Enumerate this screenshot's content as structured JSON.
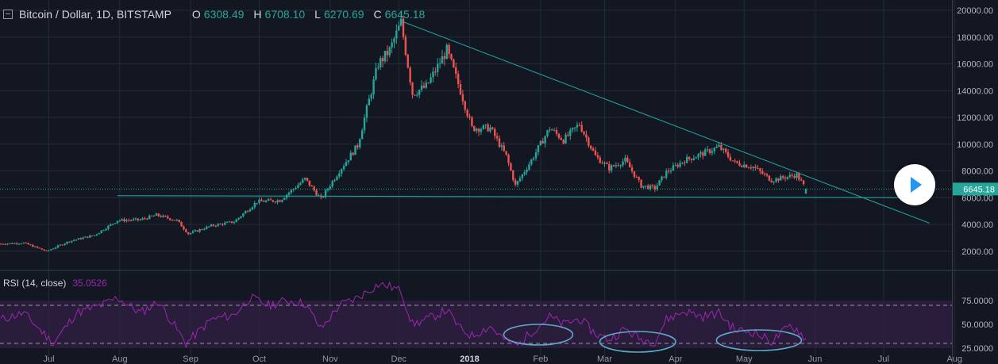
{
  "header": {
    "symbol": "Bitcoin / Dollar, 1D, BITSTAMP",
    "o_label": "O",
    "o_value": "6308.49",
    "h_label": "H",
    "h_value": "6708.10",
    "l_label": "L",
    "l_value": "6270.69",
    "c_label": "C",
    "c_value": "6645.18"
  },
  "rsi_header": {
    "label": "RSI (14, close)",
    "value": "35.0526"
  },
  "colors": {
    "background": "#131722",
    "up": "#26a69a",
    "down": "#ef5350",
    "rsi": "#9c27b0",
    "trendline": "#1fb0a8",
    "annotation": "#5fa8c8"
  },
  "chart_data": [
    {
      "type": "candlestick",
      "title": "Bitcoin / Dollar, 1D, BITSTAMP",
      "ylim": [
        800,
        20000
      ],
      "yticks": [
        "2000.00",
        "4000.00",
        "6000.00",
        "8000.00",
        "10000.00",
        "12000.00",
        "14000.00",
        "16000.00",
        "18000.00",
        "20000.00"
      ],
      "ytick_values": [
        2000,
        4000,
        6000,
        8000,
        10000,
        12000,
        14000,
        16000,
        18000,
        20000
      ],
      "xlabels": [
        "Jul",
        "Aug",
        "Sep",
        "Oct",
        "Nov",
        "Dec",
        "2018",
        "Feb",
        "Mar",
        "Apr",
        "May",
        "Jun",
        "Jul",
        "Aug"
      ],
      "last_price_label": "6645.18",
      "last_price": 6645.18,
      "grid": true,
      "price_series": [
        {
          "date": "2017-06-25",
          "close": 2550
        },
        {
          "date": "2017-07-05",
          "close": 2620
        },
        {
          "date": "2017-07-15",
          "close": 2000
        },
        {
          "date": "2017-07-25",
          "close": 2750
        },
        {
          "date": "2017-08-05",
          "close": 3200
        },
        {
          "date": "2017-08-15",
          "close": 4300
        },
        {
          "date": "2017-08-25",
          "close": 4350
        },
        {
          "date": "2017-09-01",
          "close": 4700
        },
        {
          "date": "2017-09-10",
          "close": 4300
        },
        {
          "date": "2017-09-15",
          "close": 3300
        },
        {
          "date": "2017-09-25",
          "close": 3900
        },
        {
          "date": "2017-10-05",
          "close": 4200
        },
        {
          "date": "2017-10-15",
          "close": 5700
        },
        {
          "date": "2017-10-25",
          "close": 5800
        },
        {
          "date": "2017-11-05",
          "close": 7400
        },
        {
          "date": "2017-11-12",
          "close": 5900
        },
        {
          "date": "2017-11-20",
          "close": 8000
        },
        {
          "date": "2017-11-28",
          "close": 9900
        },
        {
          "date": "2017-12-07",
          "close": 16000
        },
        {
          "date": "2017-12-12",
          "close": 17000
        },
        {
          "date": "2017-12-17",
          "close": 19100
        },
        {
          "date": "2017-12-22",
          "close": 13800
        },
        {
          "date": "2017-12-28",
          "close": 14300
        },
        {
          "date": "2018-01-06",
          "close": 17000
        },
        {
          "date": "2018-01-12",
          "close": 14000
        },
        {
          "date": "2018-01-17",
          "close": 11200
        },
        {
          "date": "2018-01-25",
          "close": 11200
        },
        {
          "date": "2018-02-01",
          "close": 9100
        },
        {
          "date": "2018-02-05",
          "close": 6900
        },
        {
          "date": "2018-02-12",
          "close": 8800
        },
        {
          "date": "2018-02-20",
          "close": 11200
        },
        {
          "date": "2018-02-26",
          "close": 10300
        },
        {
          "date": "2018-03-05",
          "close": 11500
        },
        {
          "date": "2018-03-12",
          "close": 9100
        },
        {
          "date": "2018-03-18",
          "close": 8200
        },
        {
          "date": "2018-03-25",
          "close": 8800
        },
        {
          "date": "2018-04-01",
          "close": 6900
        },
        {
          "date": "2018-04-07",
          "close": 6700
        },
        {
          "date": "2018-04-12",
          "close": 7900
        },
        {
          "date": "2018-04-20",
          "close": 8800
        },
        {
          "date": "2018-04-28",
          "close": 9300
        },
        {
          "date": "2018-05-05",
          "close": 9800
        },
        {
          "date": "2018-05-12",
          "close": 8600
        },
        {
          "date": "2018-05-20",
          "close": 8300
        },
        {
          "date": "2018-05-28",
          "close": 7300
        },
        {
          "date": "2018-06-05",
          "close": 7600
        },
        {
          "date": "2018-06-08",
          "close": 7700
        },
        {
          "date": "2018-06-12",
          "close": 6645.18
        }
      ],
      "trendlines": [
        {
          "kind": "descending",
          "from": {
            "date": "2017-12-17",
            "price": 19200
          },
          "to": {
            "date": "2018-08-05",
            "price": 4100
          }
        },
        {
          "kind": "support",
          "from": {
            "date": "2017-08-15",
            "price": 6150
          },
          "to": {
            "date": "2018-08-01",
            "price": 6000
          }
        }
      ]
    },
    {
      "type": "line",
      "title": "RSI (14, close)",
      "value_label": "35.0526",
      "ylim": [
        20,
        100
      ],
      "yticks": [
        "25.0000",
        "50.0000",
        "75.0000"
      ],
      "ytick_values": [
        25,
        50,
        75
      ],
      "bands": [
        30,
        70
      ],
      "series": [
        {
          "name": "RSI (14, close)",
          "values": [
            {
              "date": "2017-06-25",
              "v": 55
            },
            {
              "date": "2017-07-05",
              "v": 62
            },
            {
              "date": "2017-07-18",
              "v": 30
            },
            {
              "date": "2017-07-28",
              "v": 62
            },
            {
              "date": "2017-08-08",
              "v": 70
            },
            {
              "date": "2017-08-15",
              "v": 78
            },
            {
              "date": "2017-08-25",
              "v": 62
            },
            {
              "date": "2017-09-02",
              "v": 74
            },
            {
              "date": "2017-09-14",
              "v": 30
            },
            {
              "date": "2017-09-25",
              "v": 55
            },
            {
              "date": "2017-10-05",
              "v": 60
            },
            {
              "date": "2017-10-12",
              "v": 78
            },
            {
              "date": "2017-10-20",
              "v": 70
            },
            {
              "date": "2017-10-28",
              "v": 75
            },
            {
              "date": "2017-11-05",
              "v": 72
            },
            {
              "date": "2017-11-12",
              "v": 45
            },
            {
              "date": "2017-11-20",
              "v": 70
            },
            {
              "date": "2017-11-28",
              "v": 78
            },
            {
              "date": "2017-12-07",
              "v": 92
            },
            {
              "date": "2017-12-12",
              "v": 90
            },
            {
              "date": "2017-12-17",
              "v": 85
            },
            {
              "date": "2017-12-22",
              "v": 50
            },
            {
              "date": "2017-12-28",
              "v": 55
            },
            {
              "date": "2018-01-06",
              "v": 65
            },
            {
              "date": "2018-01-12",
              "v": 45
            },
            {
              "date": "2018-01-17",
              "v": 38
            },
            {
              "date": "2018-01-25",
              "v": 48
            },
            {
              "date": "2018-02-01",
              "v": 32
            },
            {
              "date": "2018-02-06",
              "v": 28
            },
            {
              "date": "2018-02-12",
              "v": 42
            },
            {
              "date": "2018-02-20",
              "v": 58
            },
            {
              "date": "2018-02-26",
              "v": 50
            },
            {
              "date": "2018-03-05",
              "v": 56
            },
            {
              "date": "2018-03-12",
              "v": 40
            },
            {
              "date": "2018-03-18",
              "v": 34
            },
            {
              "date": "2018-03-25",
              "v": 45
            },
            {
              "date": "2018-04-01",
              "v": 34
            },
            {
              "date": "2018-04-07",
              "v": 32
            },
            {
              "date": "2018-04-12",
              "v": 55
            },
            {
              "date": "2018-04-20",
              "v": 64
            },
            {
              "date": "2018-04-28",
              "v": 58
            },
            {
              "date": "2018-05-05",
              "v": 62
            },
            {
              "date": "2018-05-12",
              "v": 44
            },
            {
              "date": "2018-05-20",
              "v": 42
            },
            {
              "date": "2018-05-28",
              "v": 32
            },
            {
              "date": "2018-06-05",
              "v": 48
            },
            {
              "date": "2018-06-08",
              "v": 45
            },
            {
              "date": "2018-06-12",
              "v": 35.05
            }
          ]
        }
      ]
    }
  ]
}
